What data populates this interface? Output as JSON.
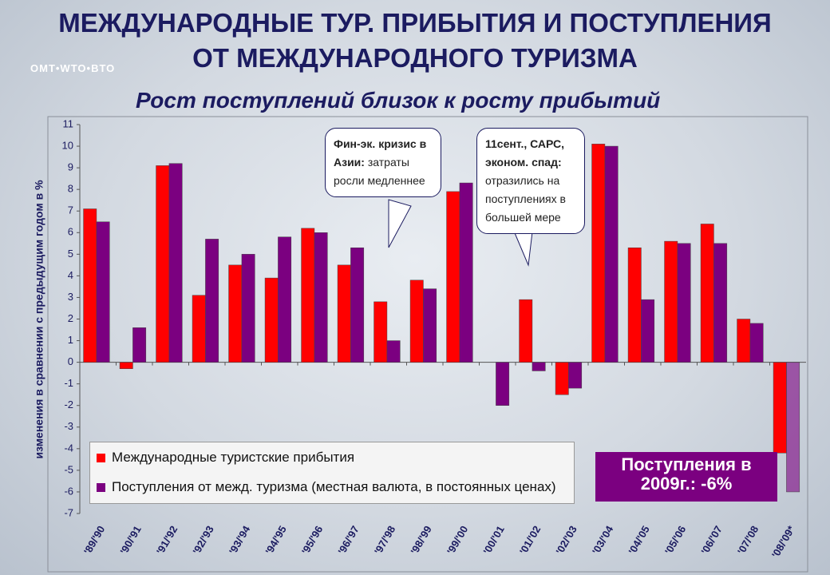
{
  "logo": "OMT•WTO•BTO",
  "chart_data": {
    "type": "bar",
    "title": [
      "МЕЖДУНАРОДНЫЕ ТУР. ПРИБЫТИЯ И ПОСТУПЛЕНИЯ",
      "ОТ МЕЖДУНАРОДНОГО ТУРИЗМА"
    ],
    "subtitle": "Рост поступлений близок к росту прибытий",
    "y_label": "изменения в сравнении с предыдущим годом в %",
    "categories": [
      "'89/'90",
      "'90/'91",
      "'91/'92",
      "'92/'93",
      "'93/'94",
      "'94/'95",
      "'95/'96",
      "'96/'97",
      "'97/'98",
      "'98/'99",
      "'99/'00",
      "'00/'01",
      "'01/'02",
      "'02/'03",
      "'03/'04",
      "'04/'05",
      "'05/'06",
      "'06/'07",
      "'07/'08",
      "'08/'09*"
    ],
    "series": [
      {
        "name": "Международные туристские прибытия",
        "color": "#ff0000",
        "values": [
          7.1,
          -0.3,
          9.1,
          3.1,
          4.5,
          3.9,
          6.2,
          4.5,
          2.8,
          3.8,
          7.9,
          0,
          2.9,
          -1.5,
          10.1,
          5.3,
          5.6,
          6.4,
          2.0,
          -4.2
        ]
      },
      {
        "name": "Поступления от межд. туризма (местная валюта, в постоянных ценах)",
        "color": "#7b0080",
        "values": [
          6.5,
          1.6,
          9.2,
          5.7,
          5.0,
          5.8,
          6.0,
          5.3,
          1.0,
          3.4,
          8.3,
          -2.0,
          -0.4,
          -1.2,
          10.0,
          2.9,
          5.5,
          5.5,
          1.8,
          -6
        ]
      }
    ],
    "ylim": [
      -7,
      11
    ],
    "yticks": [
      -7,
      -6,
      -5,
      -4,
      -3,
      -2,
      -1,
      0,
      1,
      2,
      3,
      4,
      5,
      6,
      7,
      8,
      9,
      10,
      11
    ],
    "callouts": [
      {
        "bold": "Фин-эк. кризис в Азии:",
        "text": "затраты росли медленнее"
      },
      {
        "bold": "11сент., САРС, эконом. спад:",
        "text": "отразились на поступлениях в большей мере"
      }
    ],
    "note": [
      "Поступления в",
      "2009г.: -6%"
    ]
  }
}
